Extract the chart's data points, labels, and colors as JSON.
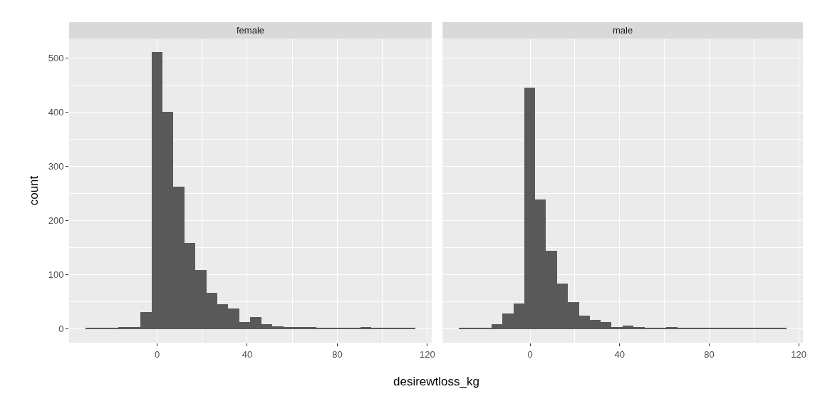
{
  "chart_data": [
    {
      "type": "histogram",
      "title": "female",
      "xlabel": "desirewtloss_kg",
      "ylabel": "count",
      "color": "#595959",
      "bins": [
        -31.8,
        -26.9,
        -22.0,
        -17.2,
        -12.3,
        -7.4,
        -2.5,
        2.4,
        7.2,
        12.1,
        17.0,
        21.9,
        26.8,
        31.6,
        36.5,
        41.4,
        46.3,
        51.2,
        56.0,
        60.9,
        65.8,
        70.7,
        75.6,
        80.4,
        85.3,
        90.2,
        95.1,
        100.0,
        104.8,
        109.7,
        114.6
      ],
      "values": [
        1,
        1,
        1,
        3,
        4,
        31,
        510,
        400,
        262,
        158,
        109,
        67,
        46,
        37,
        12,
        22,
        9,
        5,
        3,
        3,
        3,
        1,
        1,
        1,
        1,
        3,
        1,
        1,
        1,
        2
      ],
      "xlim": [
        -39.1,
        121.9
      ],
      "xticks": [
        0,
        40,
        80,
        120
      ],
      "ylim": [
        -25.5,
        535.5
      ],
      "yticks": [
        0,
        100,
        200,
        300,
        400,
        500
      ],
      "grid": true
    },
    {
      "type": "histogram",
      "title": "male",
      "color": "#595959",
      "bins": [
        -31.8,
        -26.9,
        -22.0,
        -17.2,
        -12.3,
        -7.4,
        -2.5,
        2.4,
        7.2,
        12.1,
        17.0,
        21.9,
        26.8,
        31.6,
        36.5,
        41.4,
        46.3,
        51.2,
        56.0,
        60.9,
        65.8,
        70.7,
        75.6,
        80.4,
        85.3,
        90.2,
        95.1,
        100.0,
        104.8,
        109.7,
        114.6
      ],
      "values": [
        2,
        1,
        2,
        9,
        28,
        47,
        445,
        238,
        144,
        84,
        49,
        24,
        16,
        13,
        4,
        6,
        3,
        1,
        1,
        3,
        1,
        1,
        1,
        2,
        1,
        2,
        1,
        1,
        1,
        1
      ],
      "xlim": [
        -39.1,
        121.9
      ],
      "xticks": [
        0,
        40,
        80,
        120
      ],
      "ylim": [
        -25.5,
        535.5
      ],
      "yticks": [
        0,
        100,
        200,
        300,
        400,
        500
      ],
      "grid": true,
      "tick_labels": "x"
    }
  ]
}
